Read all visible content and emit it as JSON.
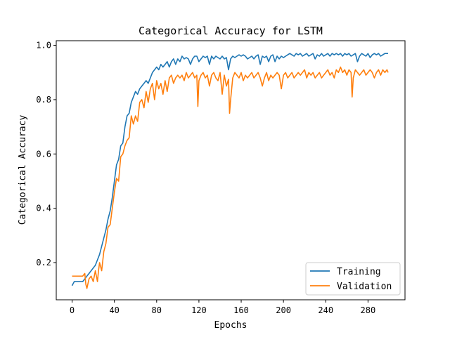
{
  "chart_data": {
    "type": "line",
    "title": "Categorical Accuracy for LSTM",
    "xlabel": "Epochs",
    "ylabel": "Categorical Accuracy",
    "xlim": [
      -15,
      315
    ],
    "ylim": [
      0.063,
      1.017
    ],
    "xticks": [
      0,
      40,
      80,
      120,
      160,
      200,
      240,
      280
    ],
    "xtick_labels": [
      "0",
      "40",
      "80",
      "120",
      "160",
      "200",
      "240",
      "280"
    ],
    "yticks": [
      0.2,
      0.4,
      0.6,
      0.8,
      1.0
    ],
    "ytick_labels": [
      "0.2",
      "0.4",
      "0.6",
      "0.8",
      "1.0"
    ],
    "grid": false,
    "legend_position": "lower-right",
    "series": [
      {
        "name": "Training",
        "color": "#1f77b4",
        "x": [
          0,
          2,
          5,
          8,
          10,
          12,
          14,
          16,
          18,
          20,
          22,
          24,
          26,
          28,
          30,
          32,
          34,
          36,
          38,
          40,
          42,
          44,
          46,
          48,
          50,
          52,
          54,
          56,
          58,
          60,
          62,
          64,
          66,
          68,
          70,
          72,
          74,
          76,
          78,
          80,
          82,
          84,
          86,
          88,
          90,
          92,
          94,
          96,
          98,
          100,
          102,
          104,
          106,
          108,
          110,
          112,
          114,
          116,
          118,
          120,
          122,
          124,
          126,
          128,
          130,
          132,
          134,
          136,
          138,
          140,
          142,
          144,
          146,
          148,
          150,
          152,
          154,
          156,
          158,
          160,
          162,
          164,
          166,
          168,
          170,
          172,
          174,
          176,
          178,
          180,
          182,
          184,
          186,
          188,
          190,
          192,
          194,
          196,
          198,
          200,
          202,
          204,
          206,
          208,
          210,
          212,
          214,
          216,
          218,
          220,
          222,
          224,
          226,
          228,
          230,
          232,
          234,
          236,
          238,
          240,
          242,
          244,
          246,
          248,
          250,
          252,
          254,
          256,
          258,
          260,
          262,
          264,
          266,
          268,
          270,
          272,
          274,
          276,
          278,
          280,
          282,
          284,
          286,
          288,
          290,
          292,
          294,
          296,
          299
        ],
        "y": [
          0.115,
          0.13,
          0.13,
          0.13,
          0.13,
          0.14,
          0.15,
          0.16,
          0.17,
          0.18,
          0.19,
          0.21,
          0.23,
          0.26,
          0.29,
          0.32,
          0.36,
          0.39,
          0.44,
          0.5,
          0.56,
          0.58,
          0.63,
          0.64,
          0.7,
          0.74,
          0.75,
          0.79,
          0.81,
          0.83,
          0.82,
          0.84,
          0.85,
          0.86,
          0.87,
          0.86,
          0.88,
          0.9,
          0.91,
          0.92,
          0.91,
          0.93,
          0.92,
          0.93,
          0.94,
          0.92,
          0.94,
          0.95,
          0.93,
          0.95,
          0.94,
          0.96,
          0.95,
          0.955,
          0.95,
          0.93,
          0.95,
          0.96,
          0.96,
          0.94,
          0.95,
          0.96,
          0.955,
          0.96,
          0.93,
          0.96,
          0.95,
          0.96,
          0.955,
          0.95,
          0.96,
          0.95,
          0.955,
          0.91,
          0.95,
          0.96,
          0.955,
          0.96,
          0.965,
          0.96,
          0.965,
          0.96,
          0.95,
          0.955,
          0.96,
          0.95,
          0.96,
          0.965,
          0.93,
          0.96,
          0.955,
          0.96,
          0.94,
          0.96,
          0.965,
          0.94,
          0.96,
          0.95,
          0.96,
          0.955,
          0.96,
          0.965,
          0.97,
          0.965,
          0.96,
          0.97,
          0.965,
          0.97,
          0.96,
          0.965,
          0.97,
          0.96,
          0.965,
          0.97,
          0.95,
          0.965,
          0.96,
          0.97,
          0.96,
          0.965,
          0.97,
          0.96,
          0.97,
          0.965,
          0.97,
          0.965,
          0.97,
          0.96,
          0.97,
          0.965,
          0.97,
          0.96,
          0.965,
          0.97,
          0.94,
          0.96,
          0.97,
          0.965,
          0.96,
          0.97,
          0.955,
          0.965,
          0.97,
          0.965,
          0.97,
          0.96,
          0.965,
          0.97,
          0.97
        ]
      },
      {
        "name": "Validation",
        "color": "#ff7f0e",
        "x": [
          0,
          2,
          4,
          6,
          8,
          10,
          12,
          13,
          14,
          16,
          18,
          20,
          22,
          24,
          25,
          26,
          28,
          30,
          32,
          34,
          36,
          38,
          40,
          42,
          44,
          46,
          48,
          50,
          52,
          54,
          56,
          58,
          60,
          62,
          64,
          66,
          68,
          70,
          72,
          74,
          76,
          78,
          80,
          82,
          84,
          86,
          88,
          90,
          92,
          94,
          96,
          98,
          100,
          102,
          104,
          106,
          108,
          110,
          112,
          114,
          116,
          118,
          119,
          120,
          122,
          124,
          126,
          128,
          130,
          132,
          134,
          136,
          138,
          140,
          142,
          144,
          146,
          148,
          149,
          150,
          152,
          154,
          156,
          158,
          160,
          162,
          164,
          166,
          168,
          170,
          172,
          174,
          176,
          178,
          180,
          182,
          184,
          186,
          188,
          190,
          192,
          194,
          196,
          198,
          200,
          202,
          204,
          206,
          208,
          210,
          212,
          214,
          216,
          218,
          220,
          222,
          224,
          226,
          228,
          230,
          232,
          234,
          236,
          238,
          240,
          242,
          244,
          246,
          248,
          250,
          252,
          254,
          256,
          258,
          260,
          262,
          264,
          265,
          266,
          268,
          270,
          272,
          274,
          276,
          278,
          280,
          282,
          284,
          286,
          288,
          290,
          292,
          294,
          296,
          298,
          299
        ],
        "y": [
          0.15,
          0.15,
          0.15,
          0.15,
          0.15,
          0.15,
          0.16,
          0.12,
          0.105,
          0.14,
          0.15,
          0.13,
          0.17,
          0.13,
          0.17,
          0.2,
          0.17,
          0.24,
          0.27,
          0.33,
          0.34,
          0.4,
          0.46,
          0.51,
          0.5,
          0.59,
          0.6,
          0.63,
          0.65,
          0.66,
          0.74,
          0.71,
          0.74,
          0.72,
          0.79,
          0.8,
          0.77,
          0.83,
          0.79,
          0.84,
          0.86,
          0.8,
          0.87,
          0.84,
          0.86,
          0.82,
          0.87,
          0.83,
          0.88,
          0.89,
          0.86,
          0.88,
          0.89,
          0.88,
          0.89,
          0.87,
          0.9,
          0.88,
          0.89,
          0.9,
          0.88,
          0.89,
          0.775,
          0.87,
          0.89,
          0.9,
          0.88,
          0.89,
          0.85,
          0.89,
          0.9,
          0.88,
          0.87,
          0.9,
          0.82,
          0.89,
          0.85,
          0.875,
          0.75,
          0.8,
          0.88,
          0.9,
          0.89,
          0.88,
          0.9,
          0.87,
          0.89,
          0.88,
          0.89,
          0.9,
          0.88,
          0.89,
          0.9,
          0.88,
          0.85,
          0.88,
          0.9,
          0.87,
          0.89,
          0.88,
          0.89,
          0.9,
          0.89,
          0.84,
          0.89,
          0.9,
          0.88,
          0.89,
          0.9,
          0.88,
          0.89,
          0.9,
          0.89,
          0.9,
          0.91,
          0.88,
          0.9,
          0.89,
          0.9,
          0.88,
          0.89,
          0.9,
          0.88,
          0.89,
          0.9,
          0.91,
          0.89,
          0.9,
          0.88,
          0.91,
          0.9,
          0.92,
          0.9,
          0.91,
          0.89,
          0.91,
          0.9,
          0.81,
          0.88,
          0.91,
          0.9,
          0.89,
          0.9,
          0.91,
          0.89,
          0.9,
          0.91,
          0.9,
          0.88,
          0.9,
          0.91,
          0.89,
          0.91,
          0.9,
          0.91,
          0.9
        ]
      }
    ]
  }
}
